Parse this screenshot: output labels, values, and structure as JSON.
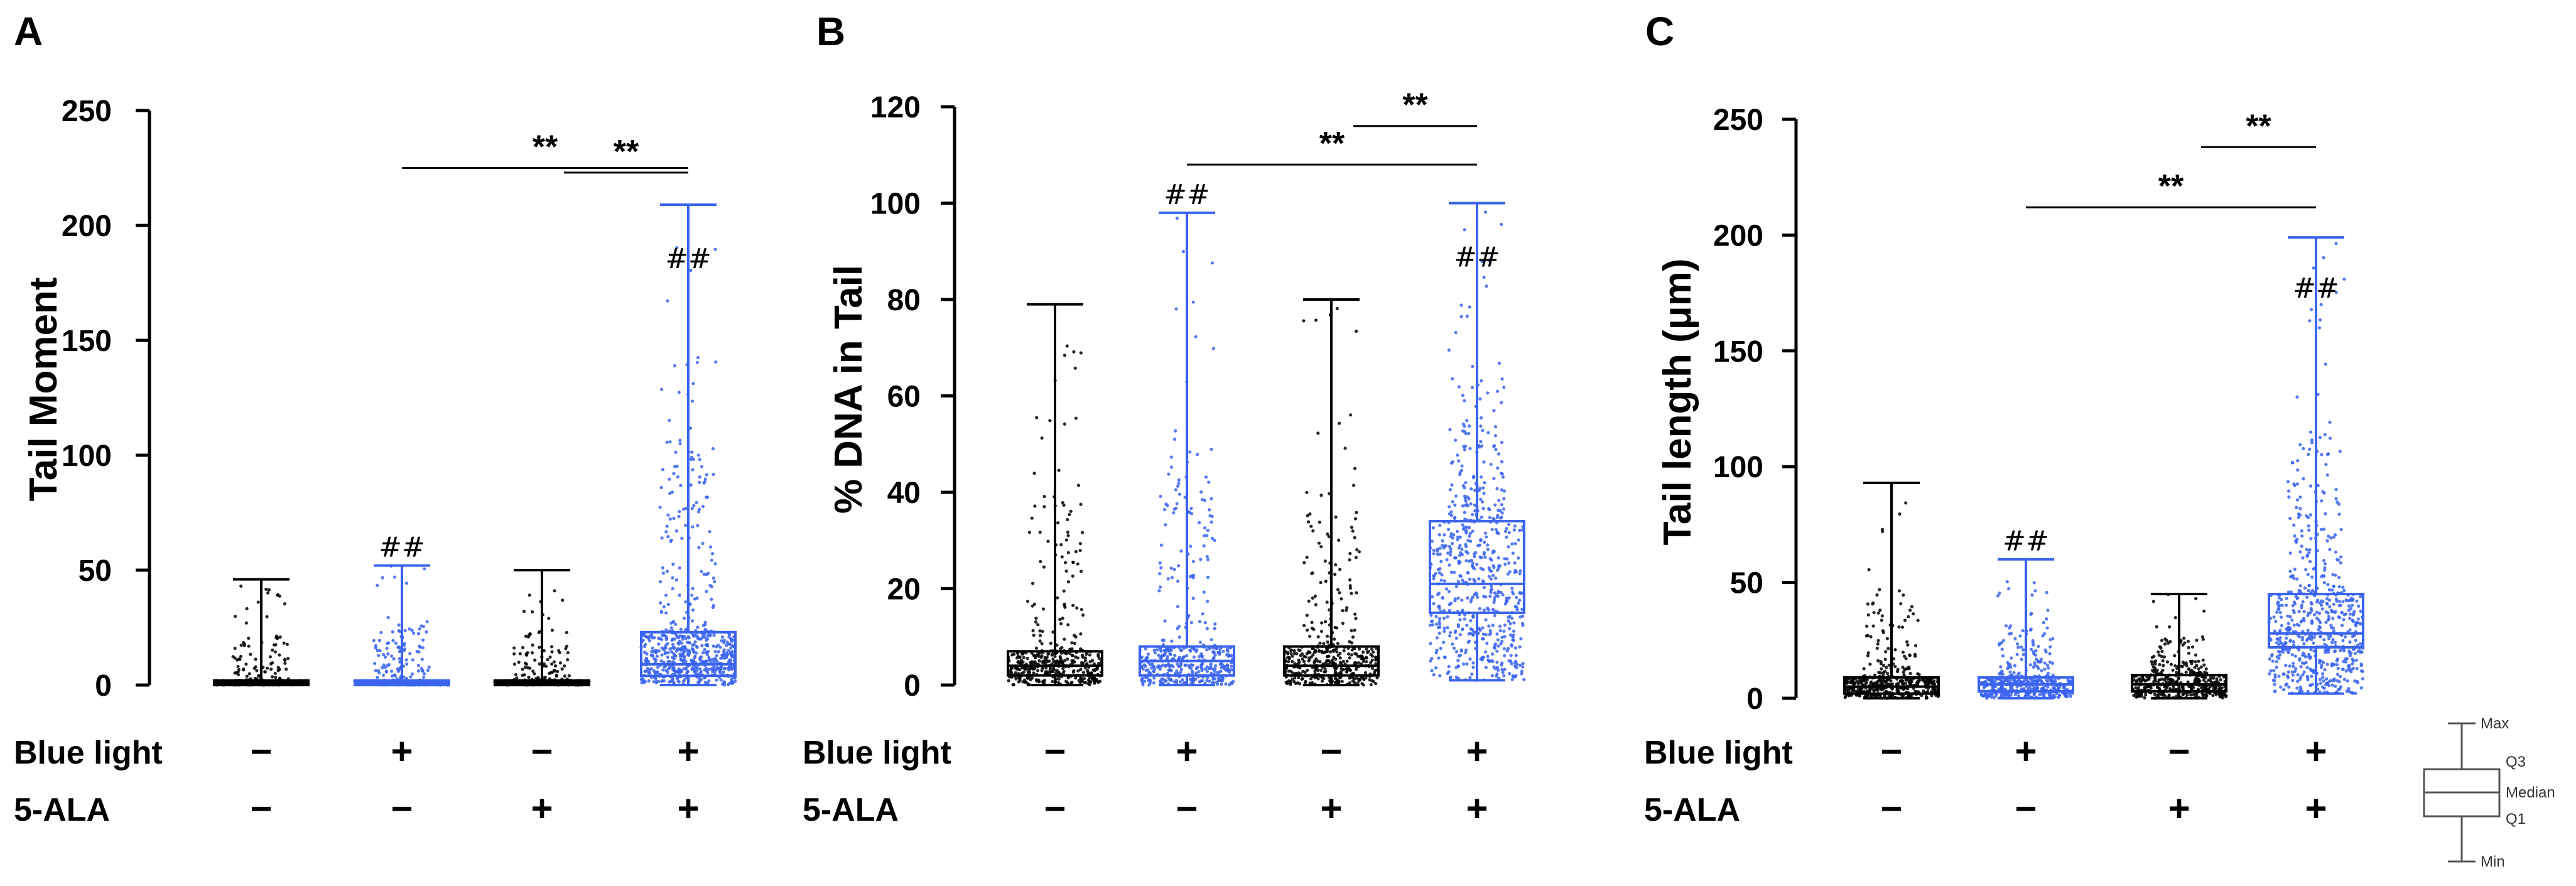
{
  "figure": {
    "legend_box": {
      "labels": [
        "Max",
        "Q3",
        "Median",
        "Q1",
        "Min"
      ]
    }
  },
  "colors": {
    "black": "#000000",
    "blue": "#3a63ee"
  },
  "chart_data": [
    {
      "type": "box",
      "panel_label": "A",
      "ylabel": "Tail Moment",
      "ylim": [
        0,
        250
      ],
      "yticks": [
        0,
        50,
        100,
        150,
        200,
        250
      ],
      "rows": [
        {
          "label": "Blue light",
          "signs": [
            "−",
            "+",
            "−",
            "+"
          ]
        },
        {
          "label": "5-ALA",
          "signs": [
            "−",
            "−",
            "+",
            "+"
          ]
        }
      ],
      "groups": [
        {
          "color": "black",
          "min": 0,
          "q1": 0,
          "median": 1,
          "q3": 2,
          "max": 46
        },
        {
          "color": "blue",
          "min": 0,
          "q1": 0,
          "median": 1,
          "q3": 2,
          "max": 52,
          "annotation": "##"
        },
        {
          "color": "black",
          "min": 0,
          "q1": 0,
          "median": 1,
          "q3": 2,
          "max": 50
        },
        {
          "color": "blue",
          "min": 0,
          "q1": 4,
          "median": 9,
          "q3": 23,
          "max": 209,
          "annotation": "##"
        }
      ],
      "comparisons": [
        {
          "from": 3,
          "to": 4,
          "y": 223,
          "label": "**"
        },
        {
          "from": 2,
          "to": 4,
          "y": 225,
          "label": "**"
        }
      ]
    },
    {
      "type": "box",
      "panel_label": "B",
      "ylabel": "% DNA in Tail",
      "ylim": [
        0,
        120
      ],
      "yticks": [
        0,
        20,
        40,
        60,
        80,
        100,
        120
      ],
      "rows": [
        {
          "label": "Blue light",
          "signs": [
            "−",
            "+",
            "−",
            "+"
          ]
        },
        {
          "label": "5-ALA",
          "signs": [
            "−",
            "−",
            "+",
            "+"
          ]
        }
      ],
      "groups": [
        {
          "color": "black",
          "min": 0,
          "q1": 2,
          "median": 4,
          "q3": 7,
          "max": 79
        },
        {
          "color": "blue",
          "min": 0,
          "q1": 2,
          "median": 5,
          "q3": 8,
          "max": 98,
          "annotation": "##"
        },
        {
          "color": "black",
          "min": 0,
          "q1": 2,
          "median": 4,
          "q3": 8,
          "max": 80
        },
        {
          "color": "blue",
          "min": 1,
          "q1": 15,
          "median": 21,
          "q3": 34,
          "max": 100,
          "annotation": "##"
        }
      ],
      "comparisons": [
        {
          "from": 3,
          "to": 4,
          "y": 116,
          "label": "**"
        },
        {
          "from": 2,
          "to": 4,
          "y": 108,
          "label": "**"
        }
      ]
    },
    {
      "type": "box",
      "panel_label": "C",
      "ylabel": "Tail length (μm)",
      "ylim": [
        0,
        250
      ],
      "yticks": [
        0,
        50,
        100,
        150,
        200,
        250
      ],
      "rows": [
        {
          "label": "Blue light",
          "signs": [
            "−",
            "+",
            "−",
            "+"
          ]
        },
        {
          "label": "5-ALA",
          "signs": [
            "−",
            "−",
            "+",
            "+"
          ]
        }
      ],
      "groups": [
        {
          "color": "black",
          "min": 0,
          "q1": 2,
          "median": 5,
          "q3": 9,
          "max": 93
        },
        {
          "color": "blue",
          "min": 0,
          "q1": 3,
          "median": 6,
          "q3": 9,
          "max": 60,
          "annotation": "##"
        },
        {
          "color": "black",
          "min": 0,
          "q1": 3,
          "median": 6,
          "q3": 10,
          "max": 45
        },
        {
          "color": "blue",
          "min": 2,
          "q1": 22,
          "median": 28,
          "q3": 45,
          "max": 199,
          "annotation": "##"
        }
      ],
      "comparisons": [
        {
          "from": 3,
          "to": 4,
          "y": 238,
          "label": "**"
        },
        {
          "from": 2,
          "to": 4,
          "y": 212,
          "label": "**"
        }
      ]
    }
  ]
}
